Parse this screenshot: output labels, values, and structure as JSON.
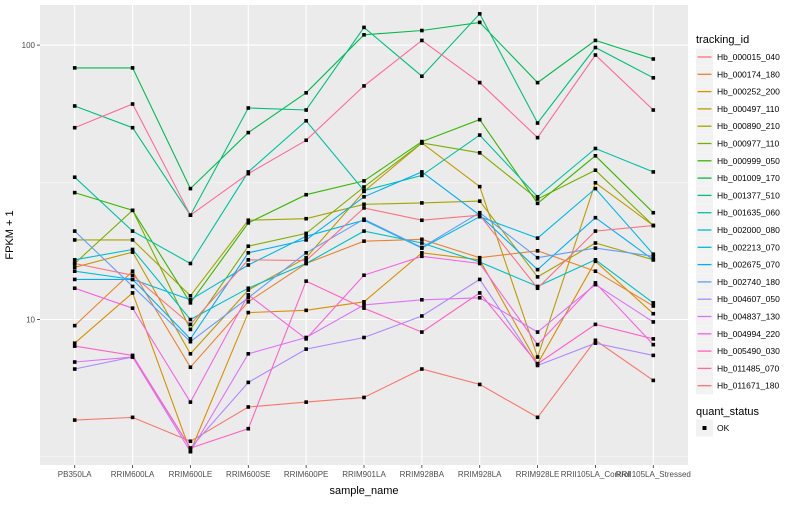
{
  "chart_data": {
    "type": "line",
    "xlabel": "sample_name",
    "ylabel": "FPKM + 1",
    "yscale": "log10",
    "ylim": [
      2.95,
      140
    ],
    "yticks": [
      10,
      100
    ],
    "ytick_labels": [
      "10",
      "100"
    ],
    "grid": true,
    "legend_placement": "right",
    "categories": [
      "PB350LA",
      "RRIM600LA",
      "RRIM600LE",
      "RRIM600SE",
      "RRIM600PE",
      "RRIM901LA",
      "RRIM928BA",
      "RRIM928LA",
      "RRIM928LE",
      "RRII105LA_Control",
      "RRII105LA_Stressed"
    ],
    "legend_title": "tracking_id",
    "series": [
      {
        "name": "Hb_000015_040",
        "color": "#F8766D",
        "values": [
          4.3,
          4.4,
          3.6,
          4.8,
          5.0,
          5.2,
          6.6,
          5.8,
          4.4,
          8.4,
          6.0
        ]
      },
      {
        "name": "Hb_000174_180",
        "color": "#EA8331",
        "values": [
          9.5,
          15.0,
          6.7,
          11.6,
          16.0,
          19.3,
          19.6,
          16.8,
          17.8,
          15.0,
          11.2
        ]
      },
      {
        "name": "Hb_000252_200",
        "color": "#D89000",
        "values": [
          8.2,
          12.5,
          3.3,
          10.6,
          10.8,
          11.6,
          17.5,
          16.5,
          6.9,
          16.3,
          10.5
        ]
      },
      {
        "name": "Hb_000497_110",
        "color": "#C09B00",
        "values": [
          15.5,
          17.6,
          7.5,
          12.8,
          16.8,
          29.3,
          44.0,
          30.5,
          7.3,
          31.5,
          22.0
        ]
      },
      {
        "name": "Hb_000890_210",
        "color": "#A3A500",
        "values": [
          19.5,
          19.5,
          12.2,
          23.0,
          23.3,
          26.3,
          26.6,
          27.0,
          14.3,
          19.0,
          16.5
        ]
      },
      {
        "name": "Hb_000977_110",
        "color": "#7CAE00",
        "values": [
          16.0,
          25.0,
          9.2,
          18.5,
          20.6,
          30.4,
          44.0,
          40.5,
          27.5,
          35.0,
          22.0
        ]
      },
      {
        "name": "Hb_000999_050",
        "color": "#39B600",
        "values": [
          29.0,
          25.0,
          11.5,
          22.5,
          28.5,
          32.0,
          44.5,
          53.5,
          26.5,
          39.5,
          24.5
        ]
      },
      {
        "name": "Hb_001009_170",
        "color": "#00BB4E",
        "values": [
          82.6,
          82.6,
          30.0,
          48.0,
          67.0,
          109.0,
          113.0,
          121.0,
          73.0,
          104.0,
          89.0
        ]
      },
      {
        "name": "Hb_001377_510",
        "color": "#00BF7D",
        "values": [
          60.0,
          50.0,
          24.0,
          59.0,
          58.0,
          116.0,
          77.0,
          130.0,
          52.0,
          98.0,
          76.0
        ]
      },
      {
        "name": "Hb_001635_060",
        "color": "#00C1A3",
        "values": [
          33.0,
          21.0,
          16.0,
          34.5,
          53.0,
          29.5,
          33.5,
          47.0,
          28.0,
          42.0,
          34.5
        ]
      },
      {
        "name": "Hb_002000_080",
        "color": "#00BFC4",
        "values": [
          16.5,
          18.0,
          10.0,
          13.0,
          16.0,
          21.0,
          19.0,
          16.2,
          13.2,
          16.5,
          11.5
        ]
      },
      {
        "name": "Hb_002213_070",
        "color": "#00B9E3",
        "values": [
          15.0,
          14.0,
          11.8,
          15.8,
          20.1,
          23.0,
          18.2,
          23.7,
          19.8,
          30.0,
          17.3
        ]
      },
      {
        "name": "Hb_002675_070",
        "color": "#00ADFA",
        "values": [
          14.0,
          14.0,
          8.5,
          17.5,
          19.5,
          28.0,
          34.5,
          24.0,
          15.2,
          23.5,
          16.5
        ]
      },
      {
        "name": "Hb_002740_180",
        "color": "#619CFF",
        "values": [
          21.0,
          13.2,
          8.3,
          12.0,
          17.5,
          23.2,
          18.3,
          24.5,
          16.8,
          18.2,
          17.0
        ]
      },
      {
        "name": "Hb_004607_050",
        "color": "#AE87FF",
        "values": [
          6.6,
          7.3,
          3.4,
          5.9,
          7.8,
          8.6,
          10.3,
          14.0,
          6.8,
          8.2,
          7.4
        ]
      },
      {
        "name": "Hb_004837_130",
        "color": "#DB72FB",
        "values": [
          7.0,
          7.3,
          3.3,
          7.5,
          8.6,
          11.3,
          11.8,
          12.0,
          9.0,
          13.4,
          9.8
        ]
      },
      {
        "name": "Hb_004994_220",
        "color": "#F564E3",
        "values": [
          13.0,
          11.0,
          5.0,
          12.3,
          8.5,
          14.5,
          17.0,
          16.0,
          8.1,
          13.6,
          8.1
        ]
      },
      {
        "name": "Hb_005490_030",
        "color": "#FF61C3",
        "values": [
          8.0,
          7.4,
          3.4,
          4.0,
          13.8,
          11.0,
          9.0,
          12.5,
          6.9,
          9.6,
          8.5
        ]
      },
      {
        "name": "Hb_011485_070",
        "color": "#FF699C",
        "values": [
          50.0,
          61.0,
          24.0,
          34.0,
          45.0,
          71.0,
          104.0,
          73.0,
          46.0,
          92.0,
          58.0
        ]
      },
      {
        "name": "Hb_011671_180",
        "color": "#FC717F",
        "values": [
          16.0,
          14.5,
          9.6,
          16.5,
          16.4,
          25.5,
          23.0,
          24.0,
          13.0,
          21.0,
          22.0
        ]
      }
    ],
    "shape_legend_title": "quant_status",
    "shape_legend": [
      "OK"
    ]
  }
}
